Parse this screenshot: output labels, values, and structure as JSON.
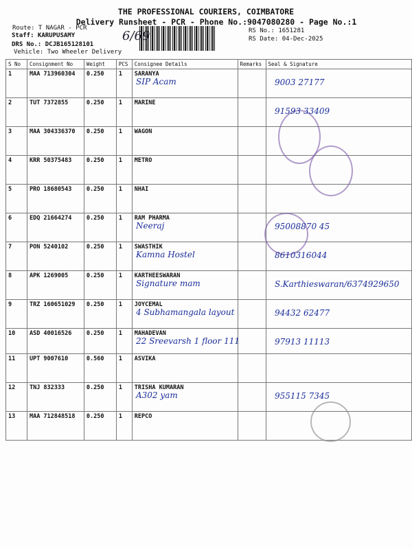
{
  "header": {
    "company": "THE PROFESSIONAL COURIERS, COIMBATORE",
    "subtitle": "Delivery Runsheet - PCR - Phone No.:9047080280 - Page No.:1",
    "route": "Route: T NAGAR - PCR",
    "staff": "Staff: KARUPUSAMY",
    "drs": "DRS No.: DCJB165128101",
    "vehicle": "Vehicle: Two Wheeler Delivery",
    "rs_no": "RS No.: 1651281",
    "rs_date": "RS Date: 04-Dec-2025",
    "handwritten_count": "6/69"
  },
  "table": {
    "columns": [
      "S No",
      "Consignment No",
      "Weight",
      "PCS",
      "Consignee Details",
      "Remarks",
      "Seal & Signature"
    ],
    "rows": [
      {
        "sno": "1",
        "cn": "MAA 713960304",
        "weight": "0.250",
        "pcs": "1",
        "consignee": "SARANYA",
        "note": "SIP Acam",
        "sign": "9003 27177"
      },
      {
        "sno": "2",
        "cn": "TUT 7372855",
        "weight": "0.250",
        "pcs": "1",
        "consignee": "MARINE",
        "note": "",
        "sign": "91593 33409"
      },
      {
        "sno": "3",
        "cn": "MAA 304336370",
        "weight": "0.250",
        "pcs": "1",
        "consignee": "WAGON",
        "note": "",
        "sign": ""
      },
      {
        "sno": "4",
        "cn": "KRR 50375483",
        "weight": "0.250",
        "pcs": "1",
        "consignee": "METRO",
        "note": "",
        "sign": ""
      },
      {
        "sno": "5",
        "cn": "PRO 18680543",
        "weight": "0.250",
        "pcs": "1",
        "consignee": "NHAI",
        "note": "",
        "sign": ""
      },
      {
        "sno": "6",
        "cn": "EDQ 21664274",
        "weight": "0.250",
        "pcs": "1",
        "consignee": "RAM PHARMA",
        "note": "Neeraj",
        "sign": "95008870 45"
      },
      {
        "sno": "7",
        "cn": "PON 5240102",
        "weight": "0.250",
        "pcs": "1",
        "consignee": "SWASTHIK",
        "note": "Kamna Hostel",
        "sign": "8610316044"
      },
      {
        "sno": "8",
        "cn": "APK 1269005",
        "weight": "0.250",
        "pcs": "1",
        "consignee": "KARTHEESWARAN",
        "note": "Signature mam",
        "sign": "S.Karthieswaran/6374929650"
      },
      {
        "sno": "9",
        "cn": "TRZ 160651029",
        "weight": "0.250",
        "pcs": "1",
        "consignee": "JOYCEMAL",
        "note": "4 Subhamangala layout",
        "sign": "94432 62477"
      },
      {
        "sno": "10",
        "cn": "ASD 40016526",
        "weight": "0.250",
        "pcs": "1",
        "consignee": "MAHADEVAN",
        "note": "22 Sreevarsh 1 floor 111",
        "sign": "97913 11113"
      },
      {
        "sno": "11",
        "cn": "UPT 9007610",
        "weight": "0.560",
        "pcs": "1",
        "consignee": "ASVIKA",
        "note": "",
        "sign": ""
      },
      {
        "sno": "12",
        "cn": "TNJ 832333",
        "weight": "0.250",
        "pcs": "1",
        "consignee": "TRISHA KUMARAN",
        "note": "A302 yam",
        "sign": "955115 7345"
      },
      {
        "sno": "13",
        "cn": "MAA 712848518",
        "weight": "0.250",
        "pcs": "1",
        "consignee": "REPCO",
        "note": "",
        "sign": ""
      }
    ]
  },
  "colors": {
    "ink": "#1a2d9a",
    "stamp": "#7d5aa8"
  }
}
